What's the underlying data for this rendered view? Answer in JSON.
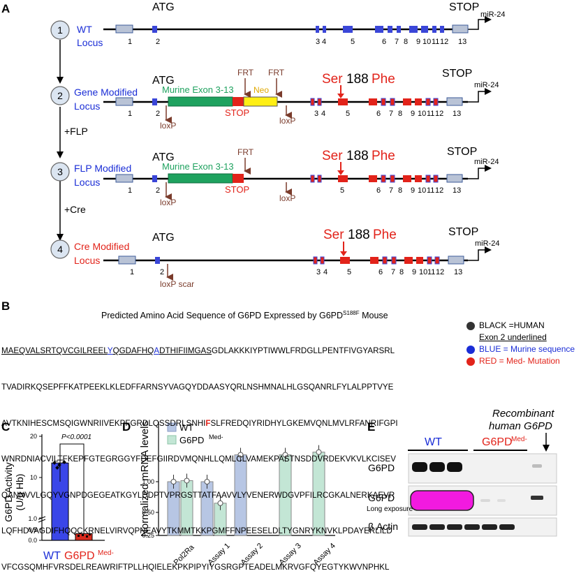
{
  "panels": {
    "a": "A",
    "b": "B",
    "c": "C",
    "d": "D",
    "e": "E"
  },
  "panel_a": {
    "loci": [
      {
        "step": "1",
        "name_line1": "WT",
        "name_line2": "Locus"
      },
      {
        "step": "2",
        "name_line1": "Gene Modified",
        "name_line2": "Locus"
      },
      {
        "step": "3",
        "name_line1": "FLP Modified",
        "name_line2": "Locus"
      },
      {
        "step": "4",
        "name_line1": "Cre Modified",
        "name_line2": "Locus"
      }
    ],
    "atg": "ATG",
    "stop": "STOP",
    "mir": "miR-24",
    "flp": "+FLP",
    "cre": "+Cre",
    "murine_exons": "Murine Exon 3-13",
    "neo": "Neo",
    "frt": "FRT",
    "loxp": "loxP",
    "loxp_scar": "loxP scar",
    "stop_cassette": "STOP",
    "mutation_ser": "Ser",
    "mutation_pos": "188",
    "mutation_phe": "Phe",
    "exon_numbers": [
      "1",
      "2",
      "3",
      "4",
      "5",
      "6",
      "7",
      "8",
      "9",
      "10",
      "11",
      "12",
      "13"
    ]
  },
  "panel_b": {
    "title": "Predicted Amino Acid Sequence of G6PD Expressed by G6PD",
    "title_sup": "S188F",
    "title_end": " Mouse",
    "line1_ul1": "MAEQVALSRTQVCGILREEL",
    "line1_blue1": "Y",
    "line1_ul2": "QGDAFHQ",
    "line1_blue2": "A",
    "line1_ul3": "DTHIFIIMGAS",
    "line1_rest": "GDLAKKKIYPTIWWLFRDGLLPENTFIVGYARSRL",
    "line2": "TVADIRKQSEPFFKATPEEKLKLEDFFARNSYVAGQYDDAASYQRLNSHMNALHLGSQANRLFYLALPPTVYE",
    "line3": "AVTKNIHESCMSQIGWNRIIVEKPFGRDLQSSDRLSNHI",
    "line3_red": "F",
    "line3_rest": "SLFREDQIYRIDHYLGKEMVQNLMVLRFANRIFGPI",
    "line4": "WNRDNIACVILTFKEPFGTEGRGGYFDEFGIIRDVMQNHLLQMLCLVAMEKPASTNSDDVRDEKVKVLKCISEV",
    "line5": "QANNVVLGQYVGNPDGEGEATKGYLDDPTVPRGSTTATFAAVVLYVENERWDGVPFILRCGKALNERKAEVR",
    "line6": "LQFHDVAGDIFHQQCKRNELVIRVQPNEAVYTKMMTKKPGMFFNPEESELDLTYGNRYKNVKLPDAYERLILD",
    "line7": "VFCGSQMHFVRSDELREAWRIFTPLLHQIELEKPKPIPYIYGSRGPTEADELMKRVGFQYEGTYKWVNPHKL",
    "legend": [
      {
        "label": "BLACK =HUMAN",
        "color": "#333333"
      },
      {
        "label": "Exon 2 underlined",
        "color": ""
      },
      {
        "label": "BLUE = Murine sequence",
        "color": "#1a2dd6"
      },
      {
        "label": "RED = Med- Mutation",
        "color": "#e2231a"
      }
    ]
  },
  "chart_data": [
    {
      "type": "bar",
      "panel": "C",
      "categories": [
        "WT",
        "G6PDMed-"
      ],
      "series": [
        {
          "values": [
            13.8,
            0.3
          ]
        }
      ],
      "ylabel": "G6PD Activity (U/g Hb)",
      "yticks": [
        "0.0",
        "0.5",
        "1.0",
        "10",
        "20"
      ],
      "pvalue": "P<0.0001",
      "category_labels": {
        "wt": "WT",
        "med": "G6PD",
        "med_sup": "Med-"
      }
    },
    {
      "type": "bar",
      "panel": "D",
      "categories": [
        "Pol2Ra",
        "Assay 1",
        "Assay 2",
        "Assay 3",
        "Assay 4"
      ],
      "series": [
        {
          "name": "WT",
          "values": [
            1.0,
            1.0,
            1.5,
            null,
            null
          ],
          "color": "#b7c6e4"
        },
        {
          "name": "G6PDMed-",
          "values": [
            1.02,
            0.6,
            null,
            1.5,
            1.55
          ],
          "color": "#c3e6d5"
        }
      ],
      "legend_wt": "WT",
      "legend_med": "G6PD",
      "legend_med_sup": "Med-",
      "ylabel": "Normalized mRNA levels",
      "yticks": [
        "0.25",
        "0.50",
        "1.00"
      ],
      "ylim": [
        0,
        2
      ]
    }
  ],
  "panel_e": {
    "recombinant_line1": "Recombinant",
    "recombinant_line2": "human G6PD",
    "wt": "WT",
    "med": "G6PD",
    "med_sup": "Med-",
    "rows": [
      {
        "label": "G6PD",
        "sub": ""
      },
      {
        "label": "G6PD",
        "sub": "Long exposure"
      },
      {
        "label": "β Actin",
        "sub": ""
      }
    ]
  }
}
